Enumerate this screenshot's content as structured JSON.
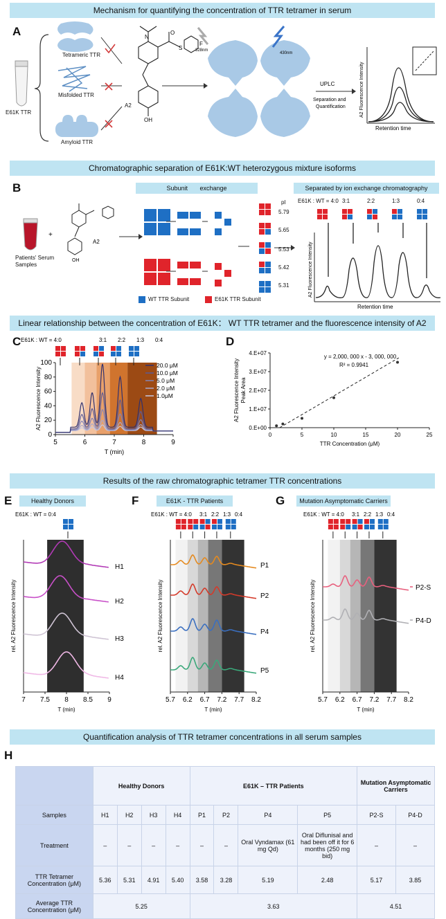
{
  "banners": {
    "a": "Mechanism for quantifying the concentration of TTR tetramer in serum",
    "b": "Chromatographic separation of E61K:WT heterozygous mixture isoforms",
    "c": "Linear relationship between the concentration of E61K： WT TTR tetramer and the fluorescence intensity of A2",
    "e": "Results of the raw chromatographic tetramer TTR concentrations",
    "h": "Quantification analysis of TTR tetramer concentrations in all serum samples"
  },
  "panel_labels": {
    "a": "A",
    "b": "B",
    "c": "C",
    "d": "D",
    "e": "E",
    "f": "F",
    "g": "G",
    "h": "H"
  },
  "panel_a": {
    "tube_label": "E61K TTR",
    "species": [
      "Tetrameric TTR",
      "Misfolded TTR",
      "Amyloid TTR"
    ],
    "probe": "A2",
    "excitation": "328nm",
    "emission": "430nm",
    "uplc": "UPLC",
    "uplc_sub": "Separation and Quantification",
    "ylabel": "A2 Fluorescence Intensity",
    "xlabel": "Retention time",
    "colors": {
      "protein": "#a9c9e6",
      "check": "#d23a3a"
    }
  },
  "panel_b": {
    "serum_label": "Patients' Serum Samples",
    "plus": "+",
    "probe": "A2",
    "exchange_left": "Subunit",
    "exchange_right": "exchange",
    "pi_header": "pI",
    "pi_values": [
      "5.79",
      "5.65",
      "5.53",
      "5.42",
      "5.31"
    ],
    "legend_wt": "WT TTR Subunit",
    "legend_e61k": "E61K TTR Subunit",
    "sep_title": "Separated by ion exchange chromatography",
    "ratio_prefix": "E61K : WT = 4:0",
    "ratios": [
      "3:1",
      "2:2",
      "1:3",
      "0:4"
    ],
    "ylabel": "A2 Fluorescence Intensity",
    "xlabel": "Retention time",
    "colors": {
      "wt": "#1e6fc4",
      "e61k": "#e0242b"
    }
  },
  "panel_c": {
    "ratio_prefix": "E61K : WT = 4:0",
    "ratios": [
      "3:1",
      "2:2",
      "1:3",
      "0:4"
    ],
    "legend": [
      "20.0 μM",
      "10.0 μM",
      "5.0 μM",
      "2.0 μM",
      "1.0μM"
    ],
    "ylabel": "A2 Fluorescence Intensity",
    "xlabel": "T (min)"
  },
  "panel_d": {
    "equation": "y = 2,000,  000 x - 3,  000,  000",
    "r2": "R² = 0.9941",
    "ylabel_1": "A2 Fluorescence Intensity",
    "ylabel_2": "Peak Area",
    "xlabel": "TTR Concentration (μM)"
  },
  "panel_e": {
    "title": "Healthy Donors",
    "ratio": "E61K : WT = 0:4",
    "ylabel": "rel. A2 Fluorescence Intensity",
    "xlabel": "T (min)",
    "series": [
      "H1",
      "H2",
      "H3",
      "H4"
    ],
    "colors": [
      "#b23ab6",
      "#c850c8",
      "#cfc4d4",
      "#f0b8e6"
    ]
  },
  "panel_f": {
    "title": "E61K - TTR Patients",
    "ratio_prefix": "E61K : WT = 4:0",
    "ratios": [
      "3:1",
      "2:2",
      "1:3",
      "0:4"
    ],
    "ylabel": "rel. A2 Fluorescence Intensity",
    "xlabel": "T (min)",
    "series": [
      "P1",
      "P2",
      "P4",
      "P5"
    ],
    "colors": [
      "#e58a1f",
      "#d43a2a",
      "#3a6fc0",
      "#3aa87a"
    ]
  },
  "panel_g": {
    "title": "Mutation Asymptomatic Carriers",
    "ratio_prefix": "E61K : WT = 4:0",
    "ratios": [
      "3:1",
      "2:2",
      "1:3",
      "0:4"
    ],
    "ylabel": "rel. A2 Fluorescence Intensity",
    "xlabel": "T (min)",
    "series": [
      "P2-S",
      "P4-D"
    ],
    "colors": [
      "#e8607e",
      "#b0b0b4"
    ]
  },
  "table": {
    "groups": {
      "healthy": "Healthy Donors",
      "patients": "E61K – TTR Patients",
      "carriers": "Mutation Asymptomatic Carriers"
    },
    "row_samples": "Samples",
    "row_treatment": "Treatment",
    "row_conc": "TTR Tetramer Concentration (μM)",
    "row_avg": "Average TTR Concentration (μM)",
    "samples": [
      "H1",
      "H2",
      "H3",
      "H4",
      "P1",
      "P2",
      "P4",
      "P5",
      "P2-S",
      "P4-D"
    ],
    "treatments": [
      "–",
      "–",
      "–",
      "–",
      "–",
      "–",
      "Oral Vyndamax (61 mg Qd)",
      "Oral Diflunisal and had been off it for 6 months (250 mg bid)",
      "–",
      "–"
    ],
    "concentrations": [
      "5.36",
      "5.31",
      "4.91",
      "5.40",
      "3.58",
      "3.28",
      "5.19",
      "2.48",
      "5.17",
      "3.85"
    ],
    "averages": [
      "5.25",
      "3.63",
      "4.51"
    ]
  },
  "chart_data": [
    {
      "type": "line",
      "title": "Panel C",
      "xlabel": "T (min)",
      "ylabel": "A2 Fluorescence Intensity",
      "xlim": [
        5,
        9
      ],
      "ylim": [
        0,
        100
      ],
      "xticks": [
        5,
        6,
        7,
        8,
        9
      ],
      "yticks": [
        0,
        20,
        40,
        60,
        80,
        100
      ],
      "peak_times": [
        5.9,
        6.25,
        6.6,
        7.2,
        7.9
      ],
      "series": [
        {
          "name": "20.0 μM",
          "color": "#30306e",
          "peaks": [
            34,
            48,
            88,
            70,
            40
          ]
        },
        {
          "name": "10.0 μM",
          "color": "#5a5a96",
          "peaks": [
            20,
            28,
            50,
            40,
            24
          ]
        },
        {
          "name": "5.0 μM",
          "color": "#8484b6",
          "peaks": [
            12,
            16,
            28,
            22,
            14
          ]
        },
        {
          "name": "2.0 μM",
          "color": "#a8a8cc",
          "peaks": [
            7,
            9,
            14,
            11,
            8
          ]
        },
        {
          "name": "1.0μM",
          "color": "#c8c8e0",
          "peaks": [
            4,
            5,
            8,
            6,
            5
          ]
        }
      ]
    },
    {
      "type": "scatter",
      "title": "Panel D",
      "xlabel": "TTR Concentration (μM)",
      "ylabel": "A2 Fluorescence Intensity Peak Area",
      "xlim": [
        0,
        25
      ],
      "ylim": [
        0,
        40000000
      ],
      "xticks": [
        0,
        5,
        10,
        15,
        20,
        25
      ],
      "ytick_labels": [
        "0.E+00",
        "1.E+07",
        "2.E+07",
        "3.E+07",
        "4.E+07"
      ],
      "x": [
        1,
        2,
        5,
        10,
        20
      ],
      "y": [
        1000000,
        2000000,
        5000000,
        16000000,
        35000000
      ]
    },
    {
      "type": "line",
      "title": "Panel E",
      "xlabel": "T (min)",
      "xlim": [
        7,
        9
      ],
      "xticks": [
        "7",
        "7.5",
        "8",
        "8.5",
        "9"
      ],
      "series_peaks": [
        7.9,
        7.85,
        7.9,
        8.0
      ]
    },
    {
      "type": "line",
      "title": "Panel F",
      "xlabel": "T (min)",
      "xlim": [
        5.7,
        8.2
      ],
      "xticks": [
        "5.7",
        "6.2",
        "6.7",
        "7.2",
        "7.7",
        "8.2"
      ]
    },
    {
      "type": "line",
      "title": "Panel G",
      "xlabel": "T (min)",
      "xlim": [
        5.7,
        8.2
      ],
      "xticks": [
        "5.7",
        "6.2",
        "6.7",
        "7.2",
        "7.7",
        "8.2"
      ]
    }
  ]
}
